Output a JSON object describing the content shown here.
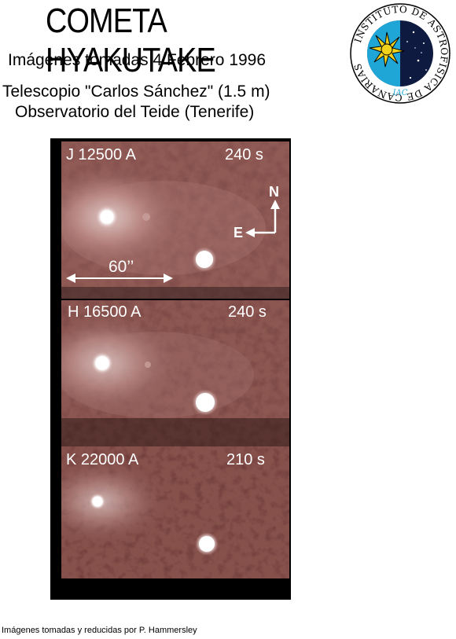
{
  "header": {
    "title": "COMETA HYAKUTAKE",
    "subtitle": "Imágenes tomadas 4 Febrero 1996",
    "telescope": "Telescopio \"Carlos Sánchez\" (1.5 m)",
    "observatory": "Observatorio del Teide (Tenerife)"
  },
  "logo": {
    "icon": "iac-emblem-icon",
    "ring_text": "INSTITUTO DE ASTROFISICA DE CANARIAS",
    "abbr": "IAC",
    "colors": {
      "sun": "#f2d21a",
      "sky": "#0f1a40",
      "dot": "#1fa6d6"
    }
  },
  "panels": [
    {
      "label": "J 12500 A",
      "exposure": "240 s"
    },
    {
      "label": "H 16500 A",
      "exposure": "240 s"
    },
    {
      "label": "K 22000 A",
      "exposure": "210 s"
    }
  ],
  "annotations": {
    "scale": "60’’",
    "north": "N",
    "east": "E"
  },
  "footer": {
    "credit": "Imágenes tomadas y reducidas por P. Hammersley"
  },
  "colors": {
    "image_base": "#8a5550",
    "image_glow": "#c99894",
    "background": "#000000"
  }
}
